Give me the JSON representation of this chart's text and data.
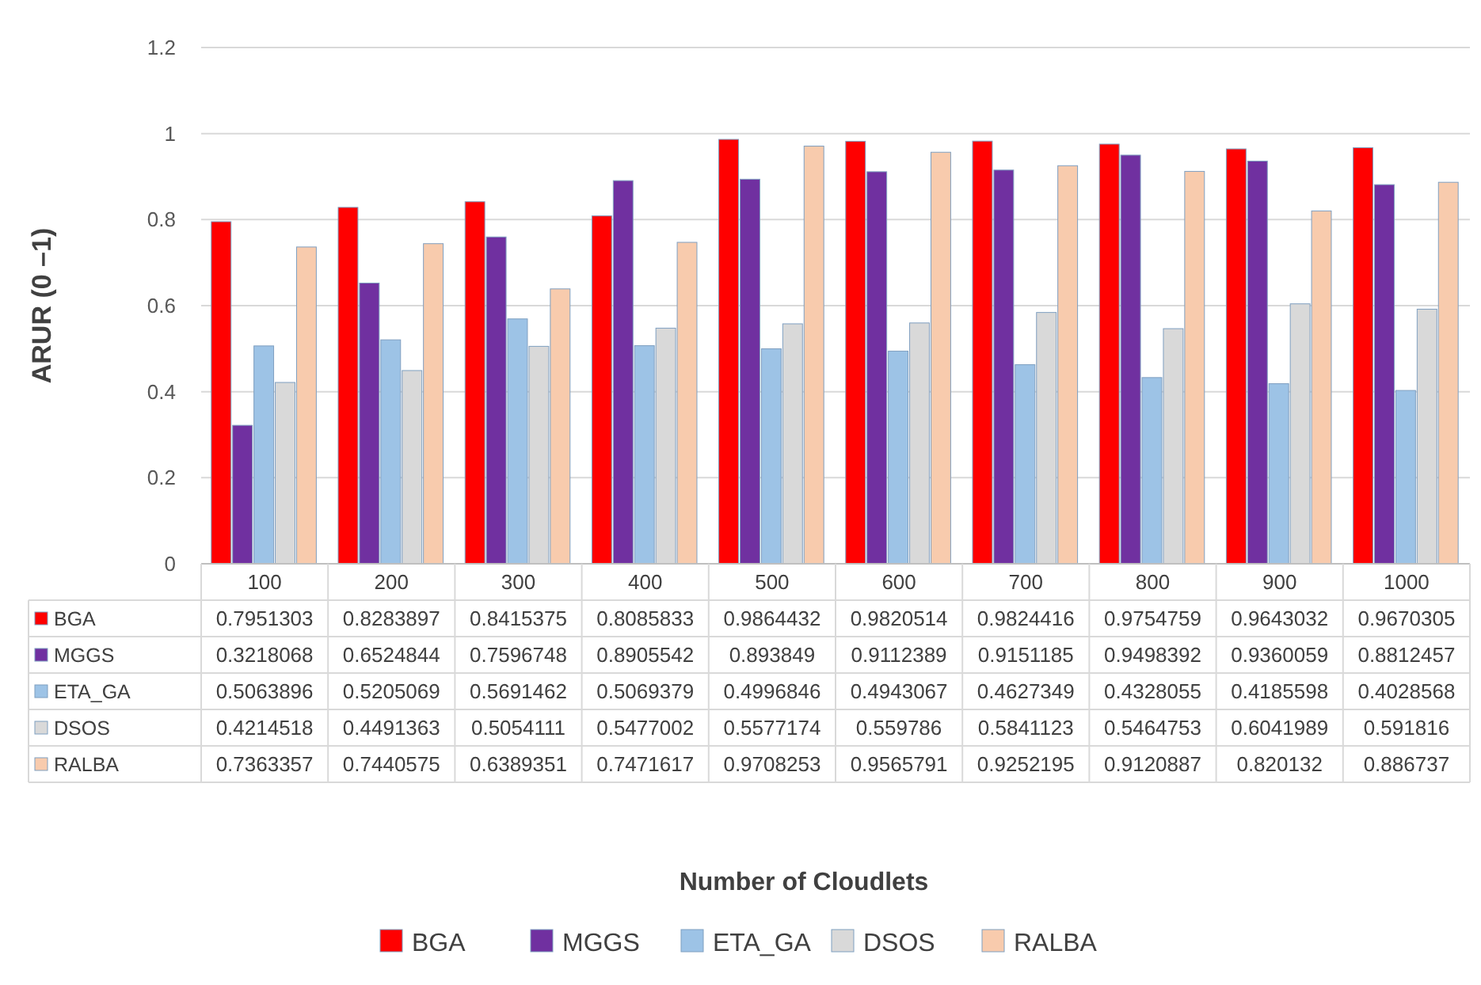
{
  "chart_data": {
    "type": "bar",
    "annotations": [
      "Number of Cloudlets"
    ],
    "ylabel": "ARUR (0 –1)",
    "categories": [
      "100",
      "200",
      "300",
      "400",
      "500",
      "600",
      "700",
      "800",
      "900",
      "1000"
    ],
    "series": [
      {
        "name": "BGA",
        "color": "#ff0000",
        "values": [
          0.7951303,
          0.8283897,
          0.8415375,
          0.8085833,
          0.9864432,
          0.9820514,
          0.9824416,
          0.9754759,
          0.9643032,
          0.9670305
        ]
      },
      {
        "name": "MGGS",
        "color": "#7030a0",
        "values": [
          0.3218068,
          0.6524844,
          0.7596748,
          0.8905542,
          0.893849,
          0.9112389,
          0.9151185,
          0.9498392,
          0.9360059,
          0.8812457
        ]
      },
      {
        "name": "ETA_GA",
        "color": "#9dc3e6",
        "values": [
          0.5063896,
          0.5205069,
          0.5691462,
          0.5069379,
          0.4996846,
          0.4943067,
          0.4627349,
          0.4328055,
          0.4185598,
          0.4028568
        ]
      },
      {
        "name": "DSOS",
        "color": "#d9d9d9",
        "values": [
          0.4214518,
          0.4491363,
          0.5054111,
          0.5477002,
          0.5577174,
          0.559786,
          0.5841123,
          0.5464753,
          0.6041989,
          0.591816
        ]
      },
      {
        "name": "RALBA",
        "color": "#f8cbad",
        "values": [
          0.7363357,
          0.7440575,
          0.6389351,
          0.7471617,
          0.9708253,
          0.9565791,
          0.9252195,
          0.9120887,
          0.820132,
          0.886737
        ]
      }
    ],
    "ylim": [
      0,
      1.2
    ],
    "yticks": [
      0,
      0.2,
      0.4,
      0.6,
      0.8,
      1,
      1.2
    ],
    "grid": "y",
    "legend": "bottom",
    "data_labels": true
  }
}
